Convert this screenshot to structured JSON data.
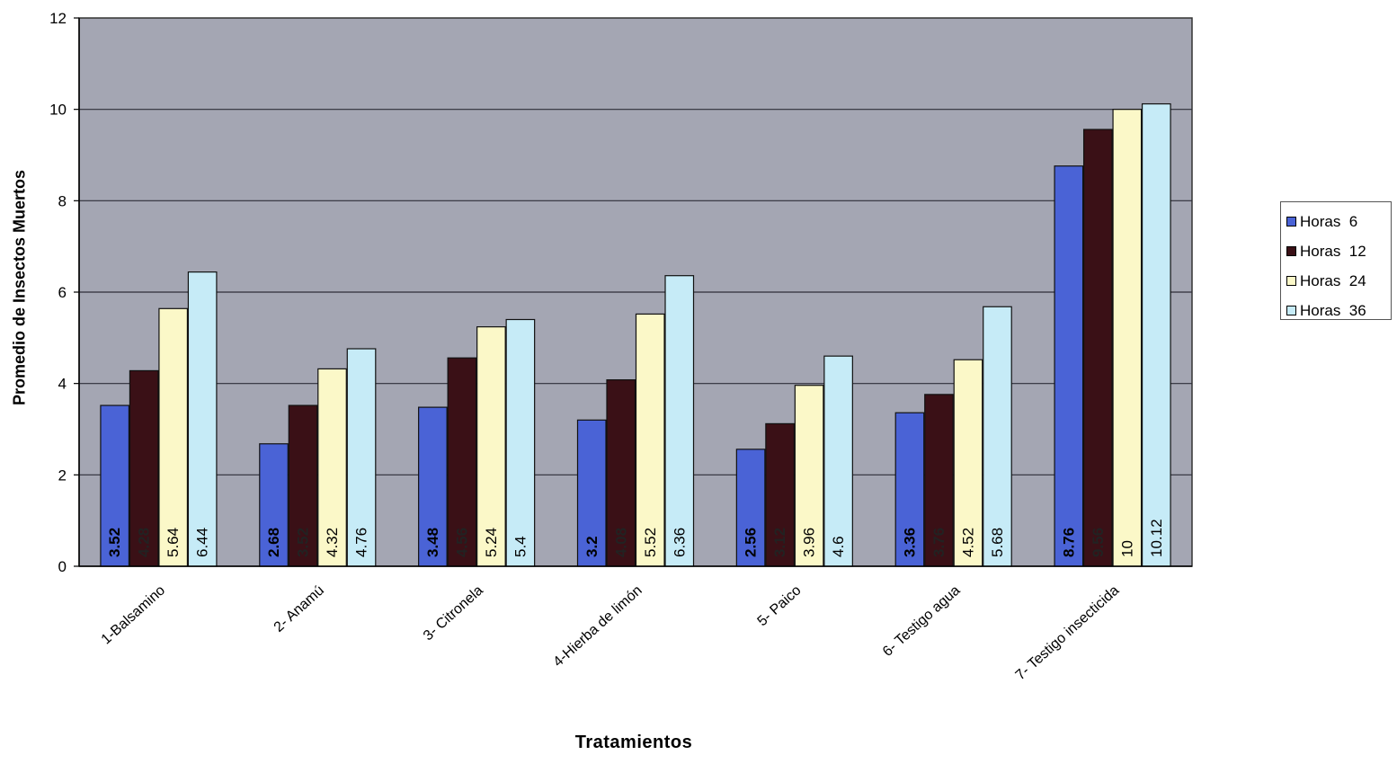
{
  "chart_data": {
    "type": "bar",
    "title": "",
    "xlabel": "Tratamientos",
    "ylabel": "Promedio de Insectos Muertos",
    "ylim": [
      0,
      12
    ],
    "yticks": [
      0,
      2,
      4,
      6,
      8,
      10,
      12
    ],
    "grid": true,
    "legend_position": "right",
    "categories": [
      "1-Balsamino",
      "2- Anamú",
      "3- Citronela",
      "4-Hierba de limón",
      "5- Paico",
      "6- Testigo agua",
      "7- Testigo insecticida"
    ],
    "series": [
      {
        "name": "Horas  6",
        "color": "#4a63d6",
        "label_color": "#000000",
        "values": [
          3.52,
          2.68,
          3.48,
          3.2,
          2.56,
          3.36,
          8.76
        ]
      },
      {
        "name": "Horas  12",
        "color": "#3a1016",
        "label_color": "#222222",
        "values": [
          4.28,
          3.52,
          4.56,
          4.08,
          3.12,
          3.76,
          9.56
        ]
      },
      {
        "name": "Horas  24",
        "color": "#fbf8c8",
        "label_color": "#000000",
        "values": [
          5.64,
          4.32,
          5.24,
          5.52,
          3.96,
          4.52,
          10
        ]
      },
      {
        "name": "Horas  36",
        "color": "#c6ebf7",
        "label_color": "#000000",
        "values": [
          6.44,
          4.76,
          5.4,
          6.36,
          4.6,
          5.68,
          10.12
        ]
      }
    ],
    "plot_background": "#a4a6b3"
  }
}
